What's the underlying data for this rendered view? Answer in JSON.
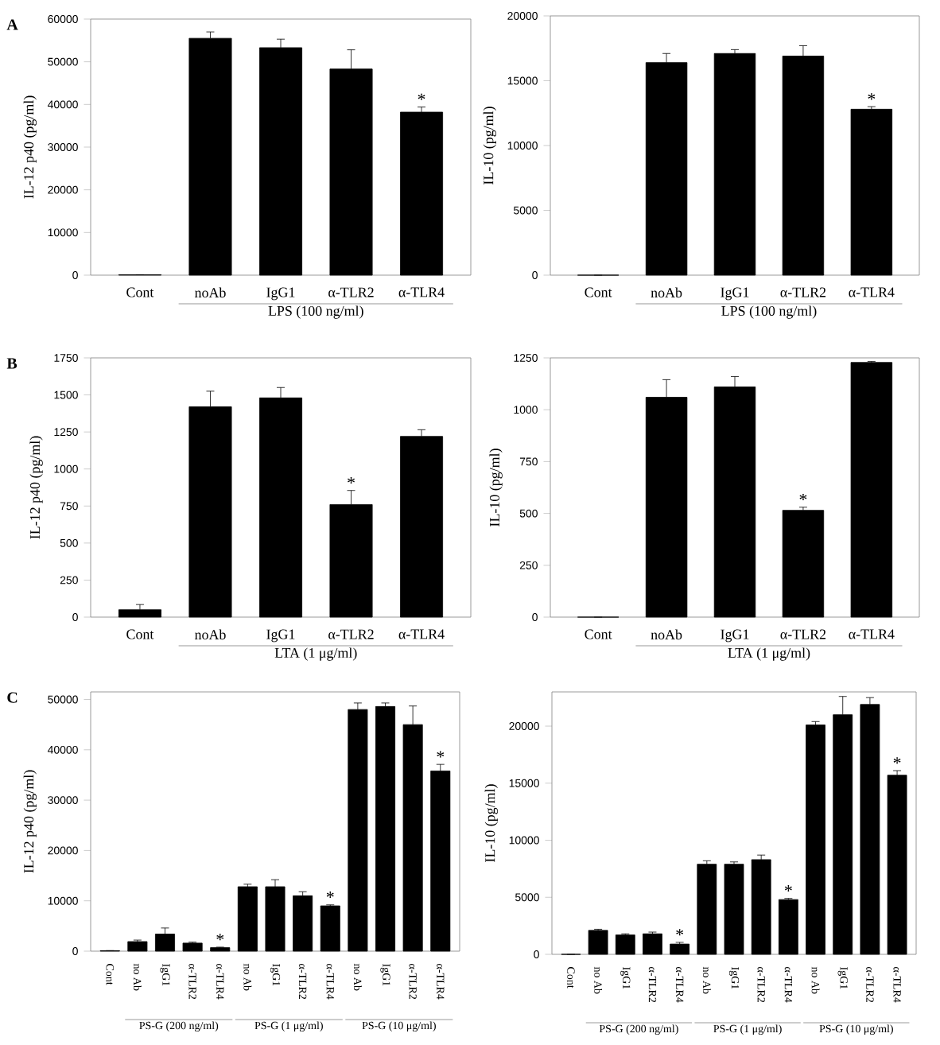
{
  "chart_data": [
    {
      "type": "bar",
      "title": "A",
      "ylabel": "IL-12 p40 (pg/ml)",
      "categories": [
        "Cont",
        "noAb",
        "IgG1",
        "α-TLR2",
        "α-TLR4"
      ],
      "values": [
        100,
        55500,
        53300,
        48300,
        38200
      ],
      "errors": [
        null,
        1500,
        2000,
        4500,
        1200
      ],
      "value_labels": [
        null,
        null,
        null,
        null,
        "*"
      ],
      "color": "#000000",
      "ylim": [
        0,
        60000
      ],
      "yticks": [
        0,
        10000,
        20000,
        30000,
        40000,
        50000,
        60000
      ],
      "annotations": [
        "LPS (100 ng/ml)"
      ]
    },
    {
      "type": "bar",
      "ylabel": "IL-10 (pg/ml)",
      "categories": [
        "Cont",
        "noAb",
        "IgG1",
        "α-TLR2",
        "α-TLR4"
      ],
      "values": [
        0,
        16400,
        17100,
        16900,
        12800
      ],
      "errors": [
        null,
        700,
        300,
        800,
        200
      ],
      "value_labels": [
        null,
        null,
        null,
        null,
        "*"
      ],
      "color": "#000000",
      "ylim": [
        0,
        20000
      ],
      "yticks": [
        0,
        5000,
        10000,
        15000,
        20000
      ],
      "annotations": [
        "LPS (100 ng/ml)"
      ]
    },
    {
      "type": "bar",
      "title": "B",
      "ylabel": "IL-12 p40 (pg/ml)",
      "categories": [
        "Cont",
        "noAb",
        "IgG1",
        "α-TLR2",
        "α-TLR4"
      ],
      "values": [
        50,
        1420,
        1480,
        760,
        1220
      ],
      "errors": [
        35,
        105,
        70,
        95,
        45
      ],
      "value_labels": [
        null,
        null,
        null,
        "*",
        null
      ],
      "color": "#000000",
      "ylim": [
        0,
        1750
      ],
      "yticks": [
        0,
        250,
        500,
        750,
        1000,
        1250,
        1500,
        1750
      ],
      "annotations": [
        "LTA (1 μg/ml)"
      ]
    },
    {
      "type": "bar",
      "ylabel": "IL-10 (pg/ml)",
      "categories": [
        "Cont",
        "noAb",
        "IgG1",
        "α-TLR2",
        "α-TLR4"
      ],
      "values": [
        0,
        1060,
        1110,
        515,
        1228
      ],
      "errors": [
        null,
        85,
        50,
        15,
        5
      ],
      "value_labels": [
        null,
        null,
        null,
        "*",
        null
      ],
      "color": "#000000",
      "ylim": [
        0,
        1250
      ],
      "yticks": [
        0,
        250,
        500,
        750,
        1000,
        1250
      ],
      "annotations": [
        "LTA (1 μg/ml)"
      ]
    },
    {
      "type": "bar",
      "title": "C",
      "ylabel": "IL-12 p40 (pg/ml)",
      "categories": [
        "Cont",
        "no Ab",
        "IgG1",
        "α-TLR2",
        "α-TLR4",
        "no Ab",
        "IgG1",
        "α-TLR2",
        "α-TLR4",
        "no Ab",
        "IgG1",
        "α-TLR2",
        "α-TLR4"
      ],
      "values": [
        100,
        1900,
        3400,
        1600,
        700,
        12800,
        12800,
        11000,
        9000,
        48000,
        48600,
        45000,
        35800
      ],
      "errors": [
        null,
        300,
        1200,
        200,
        100,
        500,
        1400,
        800,
        200,
        1300,
        700,
        3700,
        1300
      ],
      "value_labels": [
        null,
        null,
        null,
        null,
        "*",
        null,
        null,
        null,
        "*",
        null,
        null,
        null,
        "*"
      ],
      "color": "#000000",
      "ylim": [
        0,
        51500
      ],
      "yticks": [
        0,
        10000,
        20000,
        30000,
        40000,
        50000
      ],
      "annotations": [
        "PS-G (200 ng/ml)",
        "PS-G (1 μg/ml)",
        "PS-G (10 μg/ml)"
      ]
    },
    {
      "type": "bar",
      "ylabel": "IL-10 (pg/ml)",
      "categories": [
        "Cont",
        "no Ab",
        "IgG1",
        "α-TLR2",
        "α-TLR4",
        "no Ab",
        "IgG1",
        "α-TLR2",
        "α-TLR4",
        "no Ab",
        "IgG1",
        "α-TLR2",
        "α-TLR4"
      ],
      "values": [
        0,
        2100,
        1700,
        1800,
        900,
        7900,
        7900,
        8300,
        4800,
        20100,
        21000,
        21900,
        15700
      ],
      "errors": [
        null,
        100,
        100,
        150,
        150,
        300,
        200,
        400,
        100,
        300,
        1600,
        600,
        400
      ],
      "value_labels": [
        null,
        null,
        null,
        null,
        "*",
        null,
        null,
        null,
        "*",
        null,
        null,
        null,
        "*"
      ],
      "color": "#000000",
      "ylim": [
        0,
        23000
      ],
      "yticks": [
        0,
        5000,
        10000,
        15000,
        20000
      ],
      "annotations": [
        "PS-G (200 ng/ml)",
        "PS-G (1 μg/ml)",
        "PS-G (10 μg/ml)"
      ]
    }
  ]
}
